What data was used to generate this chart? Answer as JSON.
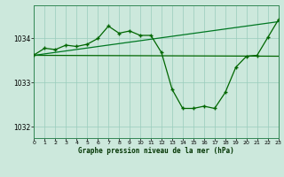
{
  "bg_color": "#cce8dc",
  "grid_color": "#99ccbb",
  "line_color_dark": "#006600",
  "line_color_med": "#007722",
  "xlabel": "Graphe pression niveau de la mer (hPa)",
  "xlim": [
    0,
    23
  ],
  "ylim": [
    1031.75,
    1034.75
  ],
  "yticks": [
    1032,
    1033,
    1034
  ],
  "xticks": [
    0,
    1,
    2,
    3,
    4,
    5,
    6,
    7,
    8,
    9,
    10,
    11,
    12,
    13,
    14,
    15,
    16,
    17,
    18,
    19,
    20,
    21,
    22,
    23
  ],
  "trend1_x": [
    0,
    23
  ],
  "trend1_y": [
    1033.62,
    1033.6
  ],
  "trend2_x": [
    0,
    23
  ],
  "trend2_y": [
    1033.62,
    1034.38
  ],
  "main_x": [
    0,
    1,
    2,
    3,
    4,
    5,
    6,
    7,
    8,
    9,
    10,
    11,
    12,
    13,
    14,
    15,
    16,
    17,
    18,
    19,
    20,
    21,
    22,
    23
  ],
  "main_y": [
    1033.63,
    1033.78,
    1033.75,
    1033.85,
    1033.82,
    1033.87,
    1034.0,
    1034.28,
    1034.12,
    1034.17,
    1034.07,
    1034.07,
    1033.68,
    1032.85,
    1032.42,
    1032.42,
    1032.47,
    1032.42,
    1032.78,
    1033.35,
    1033.6,
    1033.62,
    1034.02,
    1034.42
  ]
}
